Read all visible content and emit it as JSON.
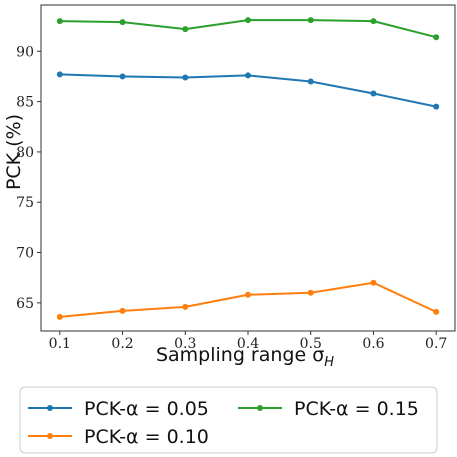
{
  "chart_data": {
    "type": "line",
    "xlabel": "Sampling range σ",
    "xlabel_subscript": "H",
    "ylabel": "PCK (%)",
    "x": [
      0.1,
      0.2,
      0.3,
      0.4,
      0.5,
      0.6,
      0.7
    ],
    "xlim": [
      0.07,
      0.73
    ],
    "ylim": [
      62.2,
      94.6
    ],
    "xticks": [
      "0.1",
      "0.2",
      "0.3",
      "0.4",
      "0.5",
      "0.6",
      "0.7"
    ],
    "yticks": [
      65,
      70,
      75,
      80,
      85,
      90
    ],
    "grid": false,
    "legend_position": "bottom",
    "series": [
      {
        "name": "PCK-α = 0.05",
        "color": "#1f77b4",
        "values": [
          87.7,
          87.5,
          87.4,
          87.6,
          87.0,
          85.8,
          84.5
        ]
      },
      {
        "name": "PCK-α = 0.10",
        "color": "#ff7f0e",
        "values": [
          63.6,
          64.2,
          64.6,
          65.8,
          66.0,
          67.0,
          64.1
        ]
      },
      {
        "name": "PCK-α = 0.15",
        "color": "#2ca02c",
        "values": [
          93.0,
          92.9,
          92.2,
          93.1,
          93.1,
          93.0,
          91.4
        ]
      }
    ]
  }
}
